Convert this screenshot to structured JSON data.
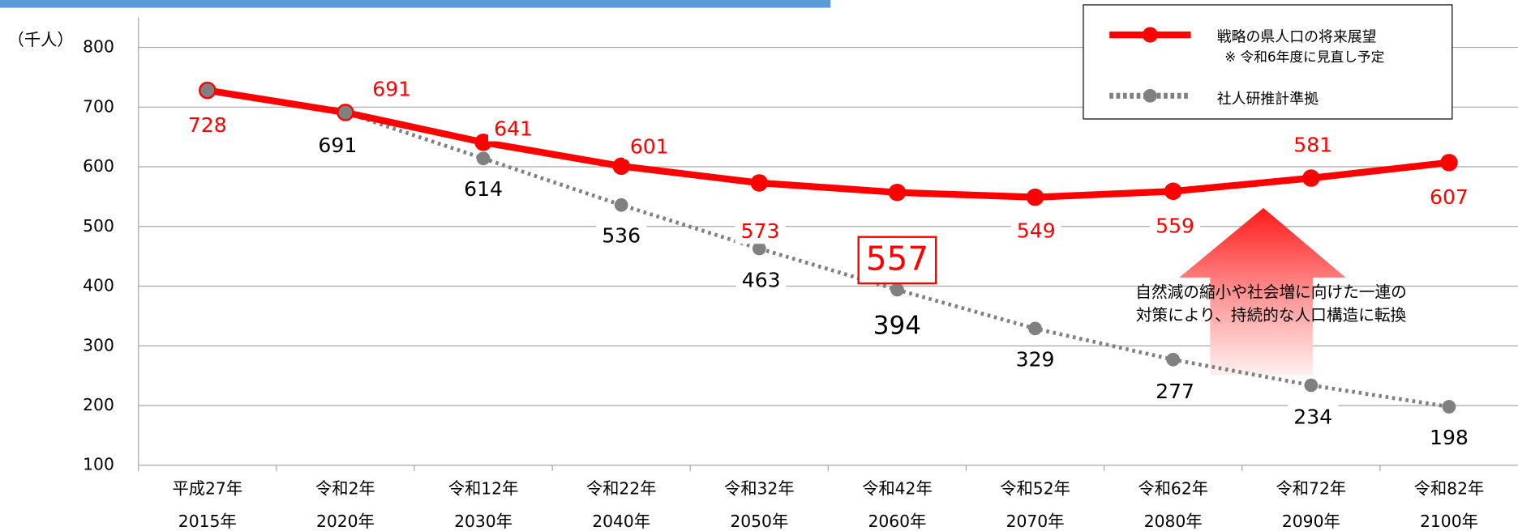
{
  "chart_data": {
    "type": "line",
    "y_label": "（千人）",
    "categories": [
      [
        "平成27年",
        "2015年"
      ],
      [
        "令和2年",
        "2020年"
      ],
      [
        "令和12年",
        "2030年"
      ],
      [
        "令和22年",
        "2040年"
      ],
      [
        "令和32年",
        "2050年"
      ],
      [
        "令和42年",
        "2060年"
      ],
      [
        "令和52年",
        "2070年"
      ],
      [
        "令和62年",
        "2080年"
      ],
      [
        "令和72年",
        "2090年"
      ],
      [
        "令和82年",
        "2100年"
      ]
    ],
    "series": [
      {
        "name": "戦略の県人口の将来展望",
        "note": "※ 令和6年度に見直し予定",
        "color": "#ff0000",
        "values": [
          728,
          691,
          641,
          601,
          573,
          557,
          549,
          559,
          581,
          607
        ]
      },
      {
        "name": "社人研推計準拠",
        "color": "#808080",
        "values": [
          728,
          691,
          614,
          536,
          463,
          394,
          329,
          277,
          234,
          198
        ]
      }
    ],
    "annotation": [
      "自然減の縮小や社会増に向けた一連の",
      "対策により、持続的な人口構造に転換"
    ],
    "ylim": [
      100,
      800
    ],
    "yticks": [
      100,
      200,
      300,
      400,
      500,
      600,
      700,
      800
    ],
    "grid": true,
    "legend": "top-right"
  }
}
